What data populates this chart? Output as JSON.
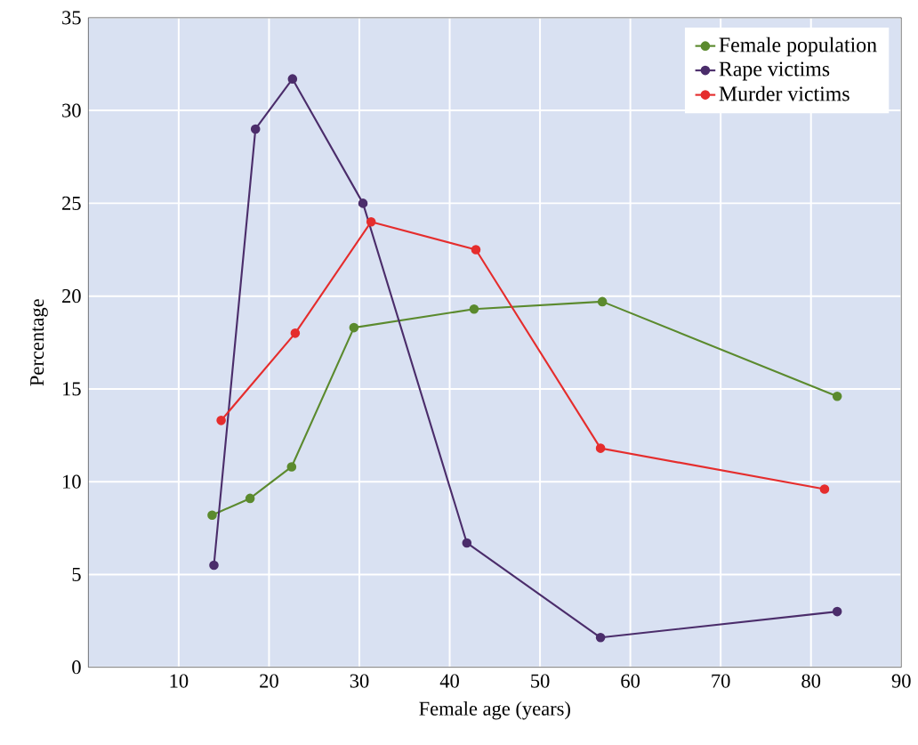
{
  "chart_data": {
    "type": "line",
    "xlabel": "Female age (years)",
    "ylabel": "Percentage",
    "xlim": [
      0,
      90
    ],
    "ylim": [
      0,
      35
    ],
    "xticks": [
      10,
      20,
      30,
      40,
      50,
      60,
      70,
      80,
      90
    ],
    "yticks": [
      0,
      5,
      10,
      15,
      20,
      25,
      30,
      35
    ],
    "grid": true,
    "legend": "top right",
    "marker": "circle",
    "line_style": "solid",
    "series": [
      {
        "name": "Female population",
        "color": "#5b8a2e",
        "x": [
          13.7,
          17.9,
          22.5,
          29.4,
          42.7,
          56.9,
          82.9
        ],
        "values": [
          8.2,
          9.1,
          10.8,
          18.3,
          19.3,
          19.7,
          14.6
        ]
      },
      {
        "name": "Rape victims",
        "color": "#4b2d6b",
        "x": [
          13.9,
          18.5,
          22.6,
          30.4,
          41.9,
          56.7,
          82.9
        ],
        "values": [
          5.5,
          29.0,
          31.7,
          25.0,
          6.7,
          1.6,
          3.0
        ]
      },
      {
        "name": "Murder victims",
        "color": "#e52d2d",
        "x": [
          14.7,
          22.9,
          31.3,
          42.9,
          56.7,
          81.5
        ],
        "values": [
          13.3,
          18.0,
          24.0,
          22.5,
          11.8,
          9.6
        ]
      }
    ]
  }
}
